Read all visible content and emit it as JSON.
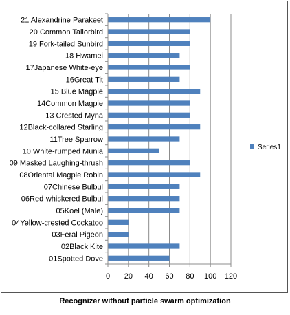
{
  "chart_data": {
    "type": "bar",
    "orientation": "horizontal",
    "categories": [
      "21 Alexandrine Parakeet",
      "20 Common Tailorbird",
      "19 Fork-tailed Sunbird",
      "18 Hwamei",
      "17Japanese White-eye",
      "16Great Tit",
      "15 Blue Magpie",
      "14Common Magpie",
      "13 Crested Myna",
      "12Black-collared Starling",
      "11Tree Sparrow",
      "10 White-rumped Munia",
      "09 Masked Laughing-thrush",
      "08Oriental Magpie Robin",
      "07Chinese Bulbul",
      "06Red-whiskered Bulbul",
      "05Koel (Male)",
      "04Yellow-crested Cockatoo",
      "03Feral Pigeon",
      "02Black Kite",
      "01Spotted Dove"
    ],
    "series": [
      {
        "name": "Series1",
        "values": [
          100,
          80,
          80,
          70,
          80,
          70,
          90,
          80,
          80,
          90,
          70,
          50,
          80,
          90,
          70,
          70,
          70,
          20,
          20,
          70,
          60
        ]
      }
    ],
    "xlim": [
      0,
      120
    ],
    "x_ticks": [
      "0",
      "20",
      "40",
      "60",
      "80",
      "100",
      "120"
    ],
    "grid": "vertical",
    "legend_position": "right",
    "bar_color": "#4F81BD"
  },
  "caption": "Recognizer without particle swarm optimization"
}
